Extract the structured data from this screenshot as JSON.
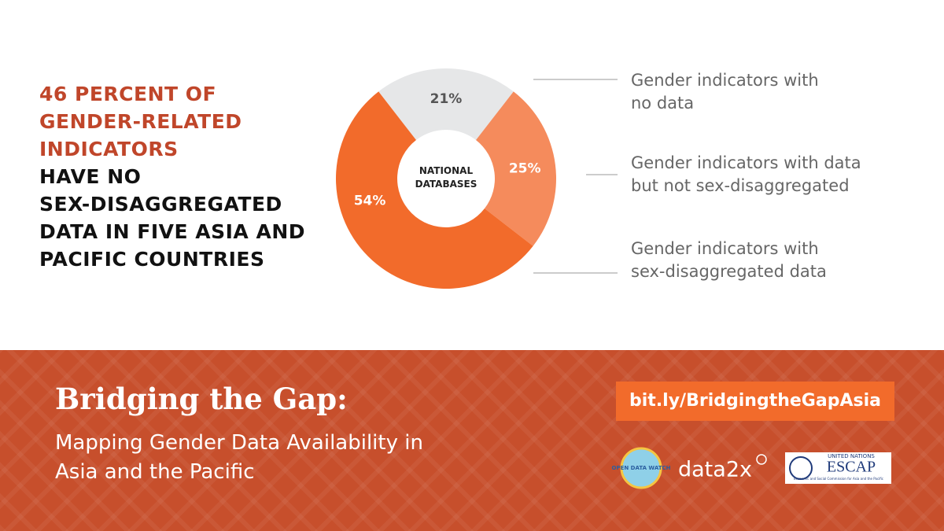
{
  "headline": {
    "highlight": "46 PERCENT OF\nGENDER-RELATED\nINDICATORS",
    "rest": "HAVE NO\nSEX-DISAGGREGATED\nDATA IN FIVE ASIA AND\nPACIFIC  COUNTRIES"
  },
  "chart_data": {
    "type": "donut",
    "center_label": "NATIONAL\nDATABASES",
    "categories": [
      "Gender indicators with\nno data",
      "Gender indicators with data\nbut not sex-disaggregated",
      "Gender indicators with\nsex-disaggregated data"
    ],
    "values": [
      21,
      25,
      54
    ],
    "value_labels": [
      "21%",
      "25%",
      "54%"
    ],
    "colors": [
      "#e6e7e8",
      "#f58b5c",
      "#f26b2b"
    ]
  },
  "footer": {
    "title": "Bridging the Gap:",
    "subtitle": "Mapping Gender Data Availability in\nAsia and the Pacific",
    "link": "bit.ly/BridgingtheGapAsia",
    "logos": {
      "odw": "OPEN DATA WATCH",
      "data2x": "data2x",
      "un": "UNITED NATIONS",
      "escap": "ESCAP",
      "escap_sub": "Economic and Social Commission for Asia and the Pacific"
    }
  }
}
